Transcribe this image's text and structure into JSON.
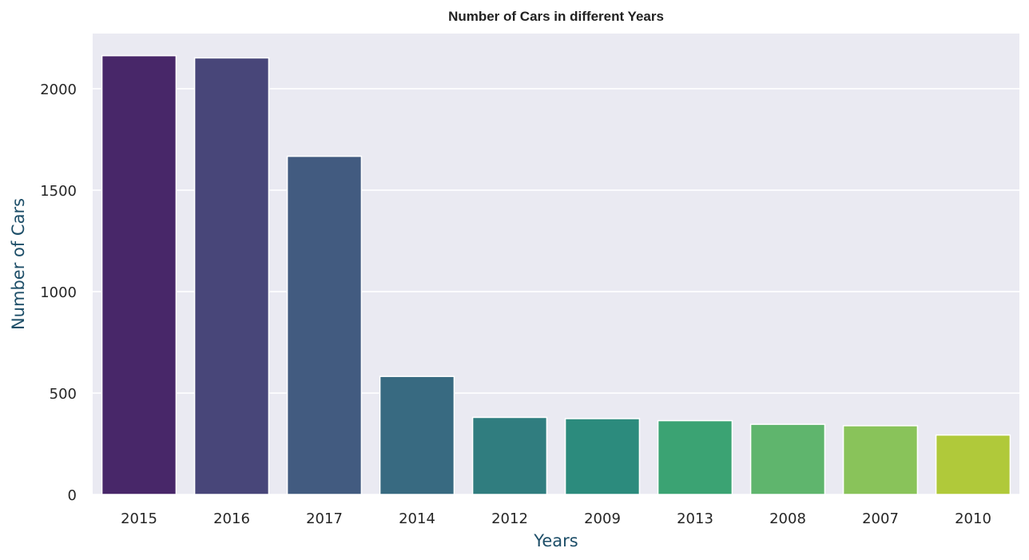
{
  "chart_data": {
    "type": "bar",
    "title": "Number of Cars in different Years",
    "xlabel": "Years",
    "ylabel": "Number of Cars",
    "categories": [
      "2015",
      "2016",
      "2017",
      "2014",
      "2012",
      "2009",
      "2013",
      "2008",
      "2007",
      "2010"
    ],
    "values": [
      2163,
      2152,
      1667,
      582,
      380,
      374,
      364,
      346,
      339,
      293
    ],
    "ylim": [
      0,
      2272
    ],
    "yticks": [
      0,
      500,
      1000,
      1500,
      2000
    ],
    "grid": true,
    "colors": [
      "#482769",
      "#484679",
      "#425b80",
      "#386a81",
      "#307d7f",
      "#2c8b7d",
      "#3ba373",
      "#5fb56d",
      "#89c35a",
      "#b0c93a"
    ],
    "background": "#eaeaf2",
    "label_color": "#1d4e68"
  }
}
